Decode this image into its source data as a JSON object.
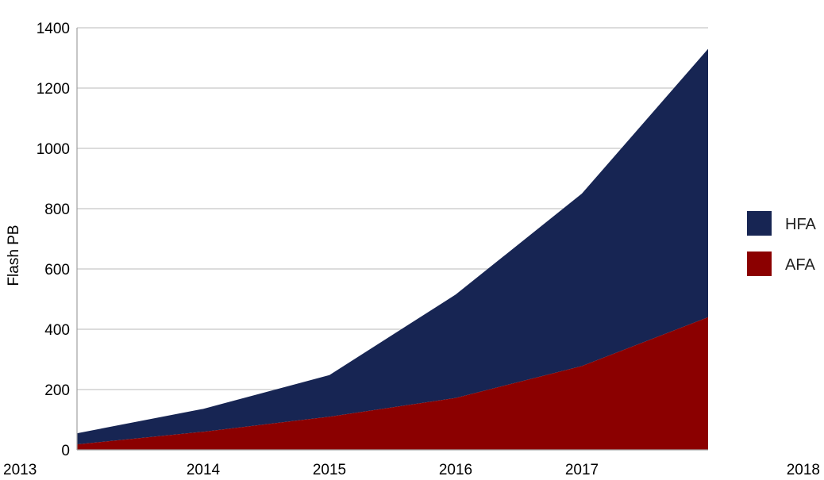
{
  "chart_data": {
    "type": "area",
    "stacked": true,
    "x": [
      "2013",
      "2014",
      "2015",
      "2016",
      "2017",
      "2018"
    ],
    "series": [
      {
        "name": "AFA",
        "color": "#8b0000",
        "values": [
          18,
          60,
          110,
          172,
          278,
          440
        ]
      },
      {
        "name": "HFA",
        "color": "#172553",
        "values": [
          37,
          76,
          138,
          343,
          572,
          890
        ]
      }
    ],
    "xlabel": "",
    "ylabel": "Flash PB",
    "ylim": [
      0,
      1400
    ],
    "yticks": [
      "0",
      "200",
      "400",
      "600",
      "800",
      "1000",
      "1200",
      "1400"
    ],
    "grid": true,
    "legend": {
      "position": "right",
      "order": [
        "HFA",
        "AFA"
      ]
    }
  }
}
